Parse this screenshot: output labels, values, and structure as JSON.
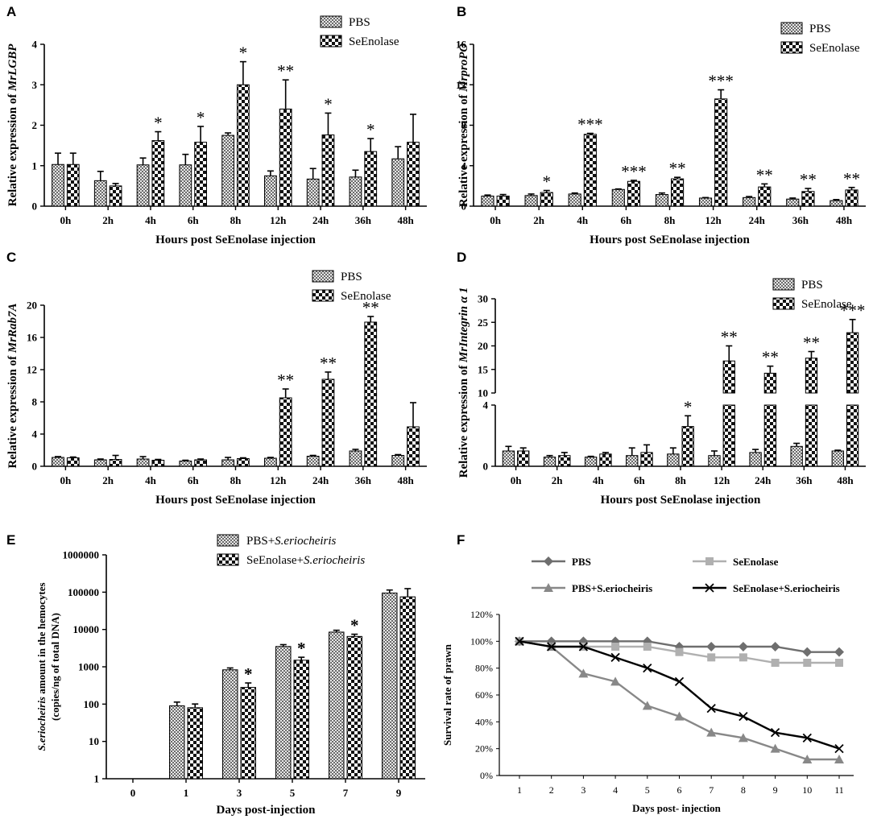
{
  "chart_data": [
    {
      "panel": "A",
      "type": "bar",
      "categories": [
        "0h",
        "2h",
        "4h",
        "6h",
        "8h",
        "12h",
        "24h",
        "36h",
        "48h"
      ],
      "series": [
        {
          "name": "PBS",
          "values": [
            1.03,
            0.63,
            1.02,
            1.02,
            1.75,
            0.75,
            0.67,
            0.72,
            1.17
          ],
          "errors": [
            0.28,
            0.23,
            0.17,
            0.26,
            0.06,
            0.12,
            0.26,
            0.17,
            0.3
          ]
        },
        {
          "name": "SeEnolase",
          "values": [
            1.03,
            0.5,
            1.62,
            1.58,
            3.0,
            2.4,
            1.76,
            1.35,
            1.58
          ],
          "errors": [
            0.28,
            0.06,
            0.22,
            0.39,
            0.57,
            0.72,
            0.54,
            0.32,
            0.69
          ]
        }
      ],
      "annotations": [
        "",
        "",
        "*",
        "*",
        "*",
        "**",
        "*",
        "*",
        ""
      ],
      "ticks": [
        "0",
        "1",
        "2",
        "3",
        "4"
      ],
      "ylim": [
        0,
        4
      ],
      "ylabel_prefix": "Relative expression of ",
      "ylabel_gene": "MrLGBP",
      "xlabel": "Hours post SeEnolase injection"
    },
    {
      "panel": "B",
      "type": "bar",
      "categories": [
        "0h",
        "2h",
        "4h",
        "6h",
        "8h",
        "12h",
        "24h",
        "36h",
        "48h"
      ],
      "series": [
        {
          "name": "PBS",
          "values": [
            1.0,
            1.05,
            1.2,
            1.65,
            1.15,
            0.8,
            0.85,
            0.7,
            0.55
          ],
          "errors": [
            0.1,
            0.15,
            0.1,
            0.05,
            0.15,
            0.05,
            0.1,
            0.1,
            0.1
          ]
        },
        {
          "name": "SeEnolase",
          "values": [
            1.0,
            1.35,
            7.1,
            2.45,
            2.7,
            10.6,
            1.9,
            1.45,
            1.6
          ],
          "errors": [
            0.15,
            0.2,
            0.1,
            0.1,
            0.15,
            0.9,
            0.3,
            0.3,
            0.25
          ]
        }
      ],
      "annotations": [
        "",
        "*",
        "***",
        "***",
        "**",
        "***",
        "**",
        "**",
        "**"
      ],
      "ticks": [
        "0",
        "4",
        "8",
        "12",
        "16"
      ],
      "ylim": [
        0,
        16
      ],
      "ylabel_prefix": "Relative expression of ",
      "ylabel_gene": "MrproPO",
      "xlabel": "Hours post SeEnolase injection"
    },
    {
      "panel": "C",
      "type": "bar",
      "categories": [
        "0h",
        "2h",
        "4h",
        "6h",
        "8h",
        "12h",
        "24h",
        "36h",
        "48h"
      ],
      "series": [
        {
          "name": "PBS",
          "values": [
            1.1,
            0.8,
            0.9,
            0.65,
            0.8,
            1.0,
            1.25,
            1.9,
            1.35
          ],
          "errors": [
            0.1,
            0.1,
            0.3,
            0.1,
            0.3,
            0.1,
            0.1,
            0.2,
            0.1
          ]
        },
        {
          "name": "SeEnolase",
          "values": [
            1.05,
            0.85,
            0.75,
            0.8,
            0.95,
            8.5,
            10.8,
            17.9,
            4.9
          ],
          "errors": [
            0.1,
            0.5,
            0.1,
            0.1,
            0.1,
            1.1,
            0.9,
            0.7,
            3.0
          ]
        }
      ],
      "annotations": [
        "",
        "",
        "",
        "",
        "",
        "**",
        "**",
        "**",
        ""
      ],
      "ticks": [
        "0",
        "4",
        "8",
        "12",
        "16",
        "20"
      ],
      "ylim": [
        0,
        20
      ],
      "ylabel_prefix": "Relative expression of ",
      "ylabel_gene": "MrRab7A",
      "xlabel": "Hours post SeEnolase injection"
    },
    {
      "panel": "D",
      "type": "bar",
      "axis_break": {
        "lower": [
          0,
          4
        ],
        "upper": [
          10,
          30
        ]
      },
      "categories": [
        "0h",
        "2h",
        "4h",
        "6h",
        "8h",
        "12h",
        "24h",
        "36h",
        "48h"
      ],
      "series": [
        {
          "name": "PBS",
          "values": [
            1.0,
            0.6,
            0.6,
            0.7,
            0.8,
            0.7,
            0.9,
            1.3,
            1.0
          ],
          "errors": [
            0.3,
            0.1,
            0.05,
            0.5,
            0.4,
            0.3,
            0.2,
            0.2,
            0.05
          ]
        },
        {
          "name": "SeEnolase",
          "values": [
            1.0,
            0.7,
            0.8,
            0.9,
            2.6,
            16.8,
            14.2,
            17.4,
            22.8
          ],
          "errors": [
            0.2,
            0.2,
            0.1,
            0.5,
            0.7,
            3.2,
            1.5,
            1.4,
            2.8
          ]
        }
      ],
      "annotations": [
        "",
        "",
        "",
        "",
        "*",
        "**",
        "**",
        "**",
        "***"
      ],
      "ticks_lower": [
        "0",
        "4"
      ],
      "ticks_upper": [
        "10",
        "15",
        "20",
        "25",
        "30"
      ],
      "ylabel_prefix": "Relative expression of ",
      "ylabel_gene": "MrIntegrin α 1",
      "xlabel": "Hours post SeEnolase injection"
    },
    {
      "panel": "E",
      "type": "bar",
      "scale": "log",
      "categories": [
        "0",
        "1",
        "3",
        "5",
        "7",
        "9"
      ],
      "series": [
        {
          "name": "PBS+",
          "name_species": "S.eriocheiris",
          "values": [
            0,
            90,
            830,
            3500,
            8500,
            95000
          ],
          "errors_log": [
            0,
            0.1,
            0.05,
            0.05,
            0.05,
            0.08
          ]
        },
        {
          "name": "SeEnolase+",
          "name_species": "S.eriocheiris",
          "values": [
            0,
            80,
            280,
            1500,
            6500,
            75000
          ],
          "errors_log": [
            0,
            0.1,
            0.12,
            0.08,
            0.06,
            0.22
          ]
        }
      ],
      "annotations": [
        "",
        "",
        "*",
        "*",
        "*",
        ""
      ],
      "ticks": [
        "1",
        "10",
        "100",
        "1000",
        "10000",
        "100000",
        "1000000"
      ],
      "ylim": [
        1,
        1000000
      ],
      "ylabel_species": "S.eriocheiris",
      "ylabel_rest": " amount in the hemocytes",
      "ylabel_line2": "(copies/ng of total DNA)",
      "xlabel": "Days post-injection"
    },
    {
      "panel": "F",
      "type": "line",
      "x": [
        "1",
        "2",
        "3",
        "4",
        "5",
        "6",
        "7",
        "8",
        "9",
        "10",
        "11"
      ],
      "series": [
        {
          "name": "PBS",
          "color": "#6e6e6e",
          "marker": "diamond",
          "values": [
            100,
            100,
            100,
            100,
            100,
            96,
            96,
            96,
            96,
            92,
            92
          ]
        },
        {
          "name": "SeEnolase",
          "color": "#b0b0b0",
          "marker": "square",
          "values": [
            100,
            96,
            96,
            96,
            96,
            92,
            88,
            88,
            84,
            84,
            84
          ]
        },
        {
          "name": "PBS+S.eriocheiris",
          "color": "#888888",
          "marker": "triangle",
          "values": [
            100,
            96,
            76,
            70,
            52,
            44,
            32,
            28,
            20,
            12,
            12
          ]
        },
        {
          "name": "SeEnolase+S.eriocheiris",
          "color": "#000000",
          "marker": "x",
          "values": [
            100,
            96,
            96,
            88,
            80,
            70,
            50,
            44,
            32,
            28,
            20
          ]
        }
      ],
      "ticks": [
        "0%",
        "20%",
        "40%",
        "60%",
        "80%",
        "100%",
        "120%"
      ],
      "ylim": [
        0,
        120
      ],
      "ylabel": "Survival rate of prawn",
      "xlabel": "Days post- injection"
    }
  ]
}
